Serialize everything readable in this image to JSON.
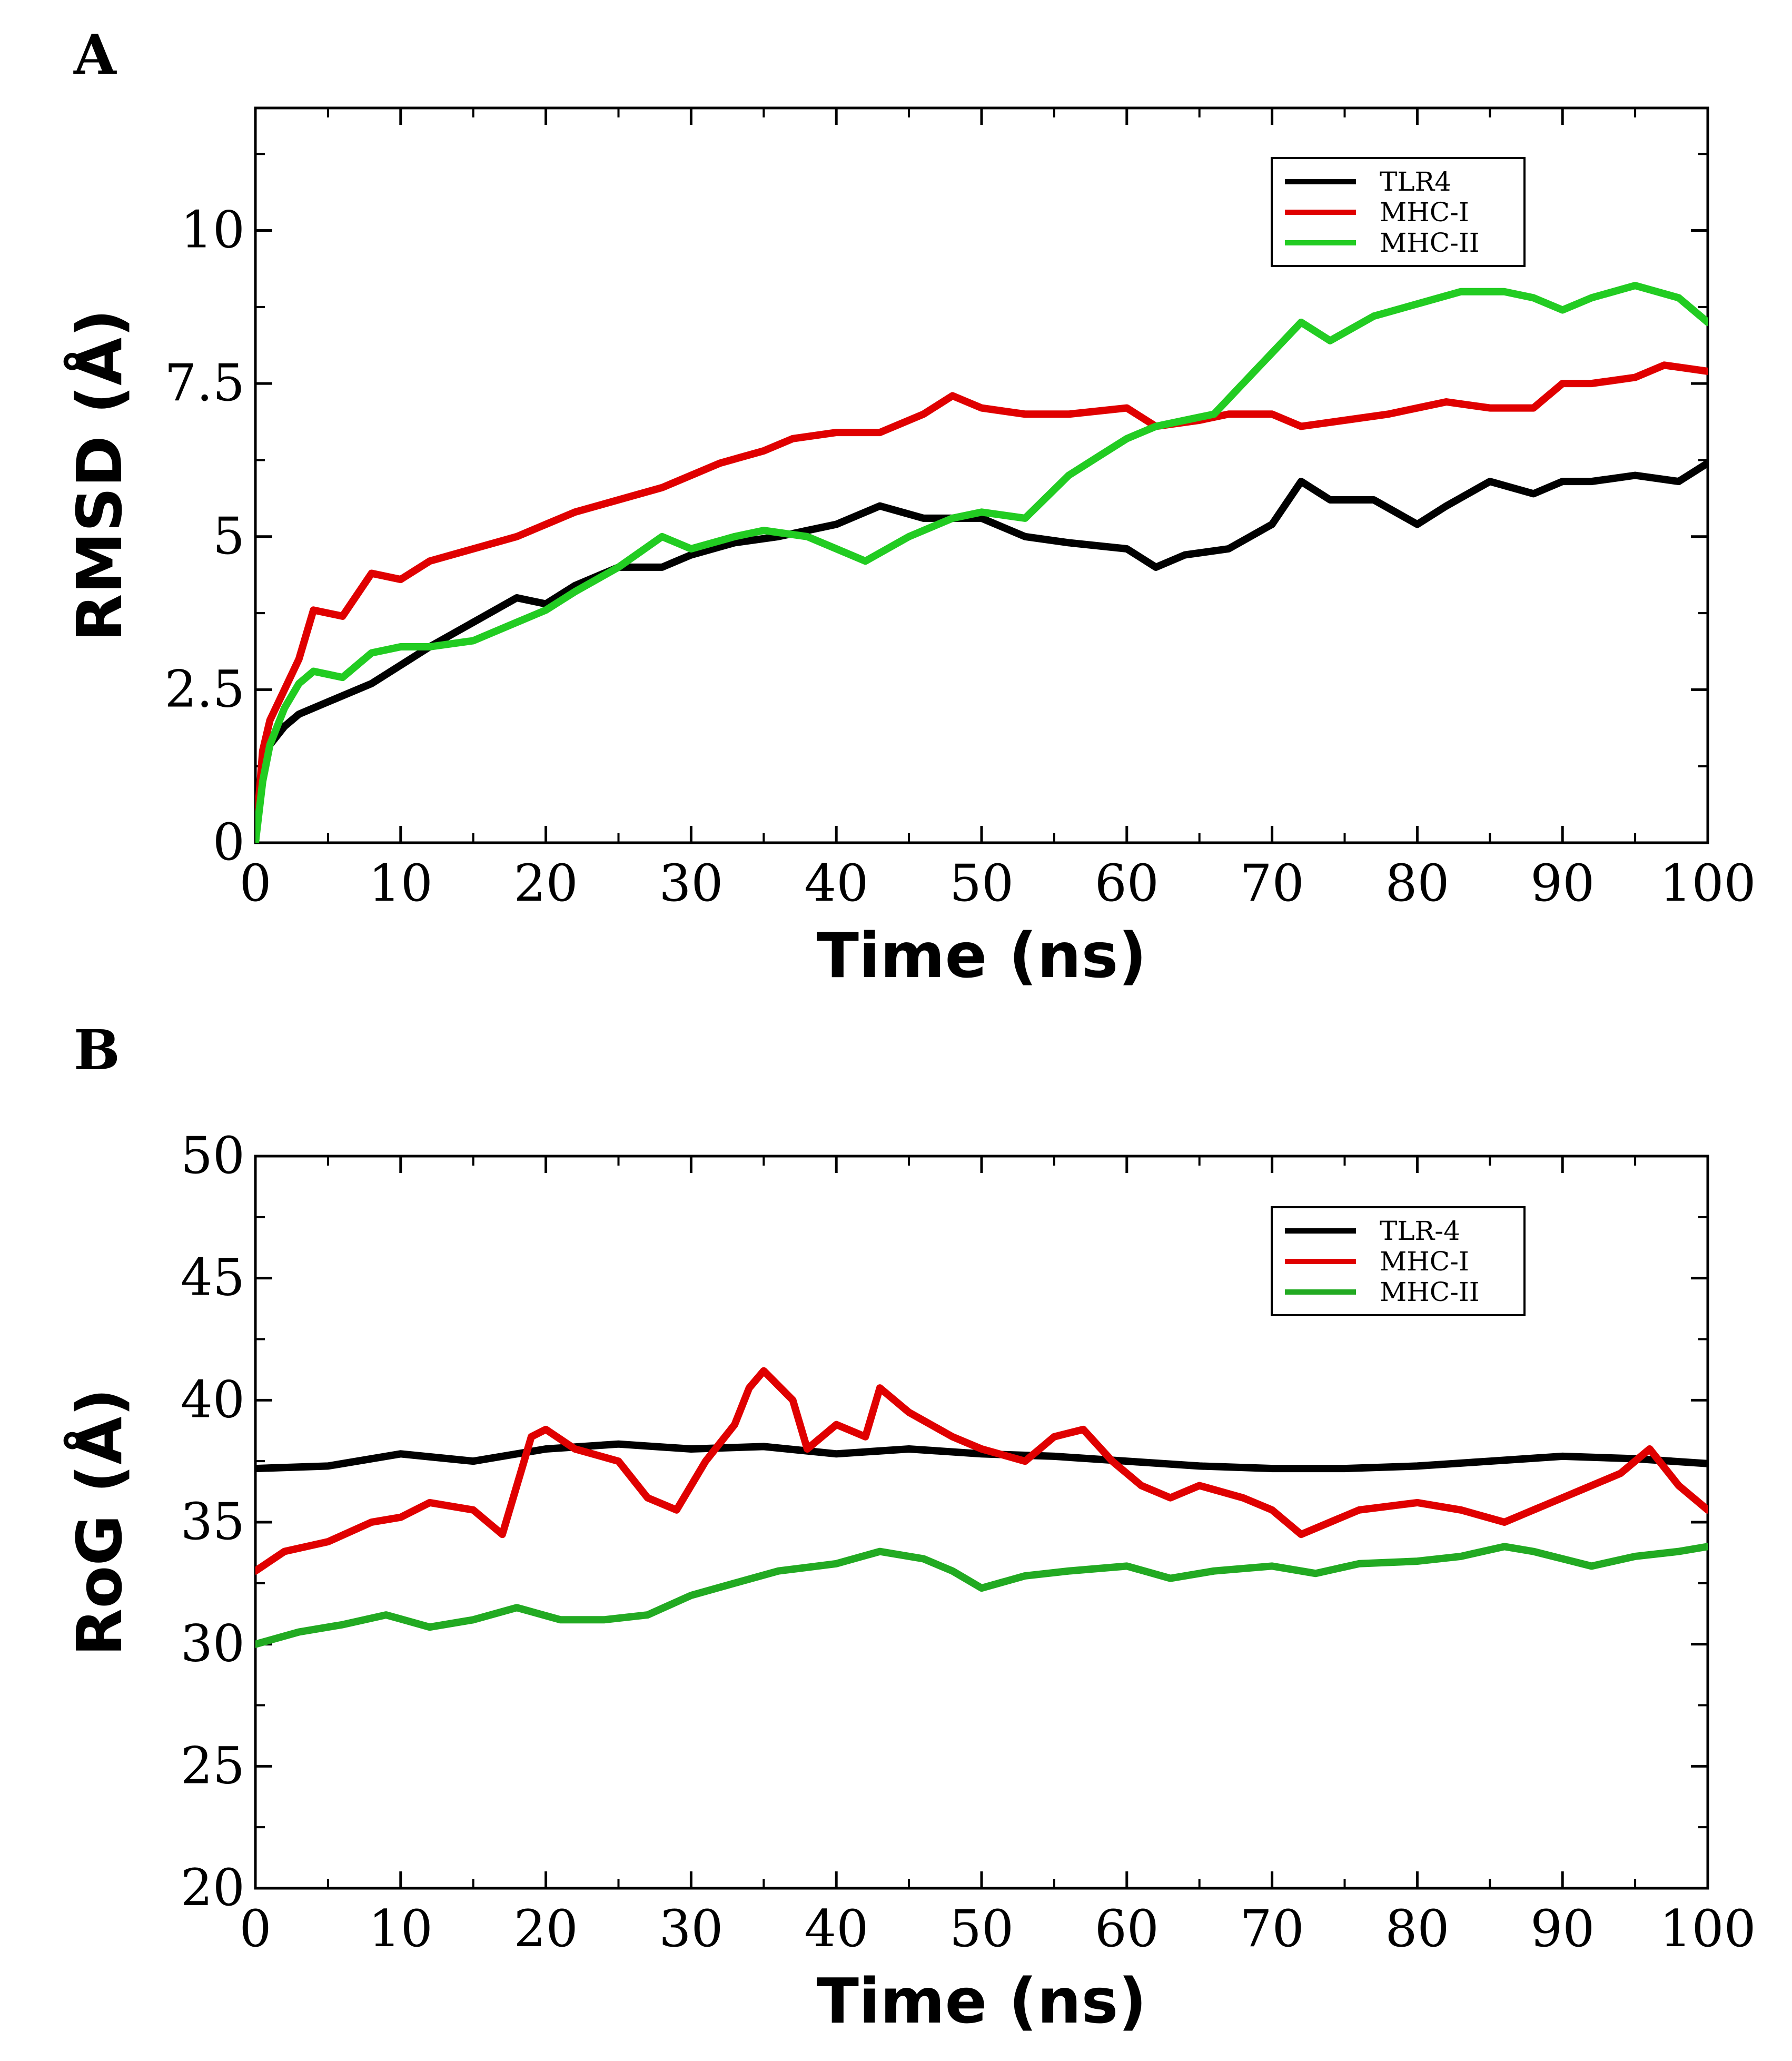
{
  "chart_data": [
    {
      "panel": "A",
      "type": "line",
      "xlabel": "Time (ns)",
      "ylabel": "RMSD (Å)",
      "xlim": [
        0,
        100
      ],
      "ylim": [
        0,
        12
      ],
      "xticks": [
        "0",
        "10",
        "20",
        "30",
        "40",
        "50",
        "60",
        "70",
        "80",
        "90",
        "100"
      ],
      "yticks": [
        "0",
        "2.5",
        "5",
        "7.5",
        "10"
      ],
      "ytick_values": [
        0,
        2.5,
        5,
        7.5,
        10
      ],
      "legend_position": "top-right",
      "series": [
        {
          "name": "TLR4",
          "color": "#000000",
          "x": [
            0,
            0.5,
            1,
            2,
            3,
            5,
            8,
            10,
            12,
            15,
            18,
            20,
            22,
            25,
            28,
            30,
            33,
            36,
            40,
            43,
            46,
            50,
            53,
            56,
            60,
            62,
            64,
            67,
            70,
            72,
            74,
            77,
            80,
            82,
            85,
            88,
            90,
            92,
            95,
            98,
            100
          ],
          "y": [
            0,
            1.2,
            1.6,
            1.9,
            2.1,
            2.3,
            2.6,
            2.9,
            3.2,
            3.6,
            4.0,
            3.9,
            4.2,
            4.5,
            4.5,
            4.7,
            4.9,
            5.0,
            5.2,
            5.5,
            5.3,
            5.3,
            5.0,
            4.9,
            4.8,
            4.5,
            4.7,
            4.8,
            5.2,
            5.9,
            5.6,
            5.6,
            5.2,
            5.5,
            5.9,
            5.7,
            5.9,
            5.9,
            6.0,
            5.9,
            6.2
          ]
        },
        {
          "name": "MHC-I",
          "color": "#e00000",
          "x": [
            0,
            0.5,
            1,
            2,
            3,
            4,
            6,
            8,
            10,
            12,
            15,
            18,
            20,
            22,
            25,
            28,
            30,
            32,
            35,
            37,
            40,
            43,
            46,
            48,
            50,
            53,
            56,
            60,
            62,
            65,
            67,
            70,
            72,
            75,
            78,
            80,
            82,
            85,
            88,
            90,
            92,
            95,
            97,
            100
          ],
          "y": [
            0,
            1.5,
            2.0,
            2.5,
            3.0,
            3.8,
            3.7,
            4.4,
            4.3,
            4.6,
            4.8,
            5.0,
            5.2,
            5.4,
            5.6,
            5.8,
            6.0,
            6.2,
            6.4,
            6.6,
            6.7,
            6.7,
            7.0,
            7.3,
            7.1,
            7.0,
            7.0,
            7.1,
            6.8,
            6.9,
            7.0,
            7.0,
            6.8,
            6.9,
            7.0,
            7.1,
            7.2,
            7.1,
            7.1,
            7.5,
            7.5,
            7.6,
            7.8,
            7.7
          ]
        },
        {
          "name": "MHC-II",
          "color": "#22cc22",
          "x": [
            0,
            0.5,
            1,
            2,
            3,
            4,
            6,
            8,
            10,
            12,
            15,
            18,
            20,
            22,
            25,
            28,
            30,
            33,
            35,
            38,
            40,
            42,
            45,
            48,
            50,
            53,
            56,
            58,
            60,
            62,
            64,
            66,
            68,
            70,
            72,
            74,
            77,
            80,
            83,
            86,
            88,
            90,
            92,
            95,
            98,
            100
          ],
          "y": [
            0,
            1.0,
            1.6,
            2.2,
            2.6,
            2.8,
            2.7,
            3.1,
            3.2,
            3.2,
            3.3,
            3.6,
            3.8,
            4.1,
            4.5,
            5.0,
            4.8,
            5.0,
            5.1,
            5.0,
            4.8,
            4.6,
            5.0,
            5.3,
            5.4,
            5.3,
            6.0,
            6.3,
            6.6,
            6.8,
            6.9,
            7.0,
            7.5,
            8.0,
            8.5,
            8.2,
            8.6,
            8.8,
            9.0,
            9.0,
            8.9,
            8.7,
            8.9,
            9.1,
            8.9,
            8.5
          ]
        }
      ],
      "legend": [
        "TLR4",
        "MHC-I",
        "MHC-II"
      ]
    },
    {
      "panel": "B",
      "type": "line",
      "xlabel": "Time (ns)",
      "ylabel": "RoG (Å)",
      "xlim": [
        0,
        100
      ],
      "ylim": [
        20,
        50
      ],
      "xticks": [
        "0",
        "10",
        "20",
        "30",
        "40",
        "50",
        "60",
        "70",
        "80",
        "90",
        "100"
      ],
      "yticks": [
        "20",
        "25",
        "30",
        "35",
        "40",
        "45",
        "50"
      ],
      "ytick_values": [
        20,
        25,
        30,
        35,
        40,
        45,
        50
      ],
      "legend_position": "top-right",
      "series": [
        {
          "name": "TLR-4",
          "color": "#000000",
          "x": [
            0,
            5,
            10,
            15,
            20,
            25,
            30,
            35,
            40,
            45,
            50,
            55,
            60,
            65,
            70,
            75,
            80,
            85,
            90,
            95,
            100
          ],
          "y": [
            37.2,
            37.3,
            37.8,
            37.5,
            38.0,
            38.2,
            38.0,
            38.1,
            37.8,
            38.0,
            37.8,
            37.7,
            37.5,
            37.3,
            37.2,
            37.2,
            37.3,
            37.5,
            37.7,
            37.6,
            37.4
          ]
        },
        {
          "name": "MHC-I",
          "color": "#e00000",
          "x": [
            0,
            2,
            5,
            8,
            10,
            12,
            15,
            17,
            19,
            20,
            22,
            25,
            27,
            29,
            31,
            33,
            34,
            35,
            37,
            38,
            40,
            42,
            43,
            45,
            48,
            50,
            53,
            55,
            57,
            59,
            61,
            63,
            65,
            68,
            70,
            72,
            74,
            76,
            80,
            83,
            86,
            88,
            90,
            92,
            94,
            96,
            98,
            100
          ],
          "y": [
            33.0,
            33.8,
            34.2,
            35.0,
            35.2,
            35.8,
            35.5,
            34.5,
            38.5,
            38.8,
            38.0,
            37.5,
            36.0,
            35.5,
            37.5,
            39.0,
            40.5,
            41.2,
            40.0,
            38.0,
            39.0,
            38.5,
            40.5,
            39.5,
            38.5,
            38.0,
            37.5,
            38.5,
            38.8,
            37.5,
            36.5,
            36.0,
            36.5,
            36.0,
            35.5,
            34.5,
            35.0,
            35.5,
            35.8,
            35.5,
            35.0,
            35.5,
            36.0,
            36.5,
            37.0,
            38.0,
            36.5,
            35.5
          ]
        },
        {
          "name": "MHC-II",
          "color": "#22aa22",
          "x": [
            0,
            3,
            6,
            9,
            12,
            15,
            18,
            21,
            24,
            27,
            30,
            33,
            36,
            40,
            43,
            46,
            48,
            50,
            53,
            56,
            60,
            63,
            66,
            70,
            73,
            76,
            80,
            83,
            86,
            88,
            90,
            92,
            95,
            98,
            100
          ],
          "y": [
            30.0,
            30.5,
            30.8,
            31.2,
            30.7,
            31.0,
            31.5,
            31.0,
            31.0,
            31.2,
            32.0,
            32.5,
            33.0,
            33.3,
            33.8,
            33.5,
            33.0,
            32.3,
            32.8,
            33.0,
            33.2,
            32.7,
            33.0,
            33.2,
            32.9,
            33.3,
            33.4,
            33.6,
            34.0,
            33.8,
            33.5,
            33.2,
            33.6,
            33.8,
            34.0
          ]
        }
      ],
      "legend": [
        "TLR-4",
        "MHC-I",
        "MHC-II"
      ]
    }
  ]
}
